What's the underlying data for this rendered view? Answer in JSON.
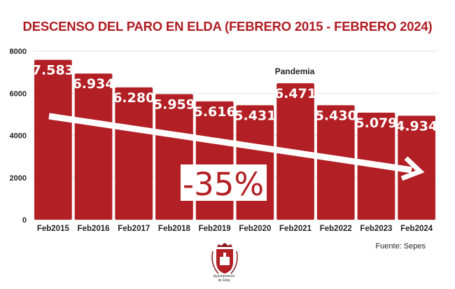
{
  "chart_data": {
    "type": "bar",
    "title": "DESCENSO DEL PARO EN ELDA (FEBRERO 2015 - FEBRERO 2024)",
    "categories": [
      "Feb2015",
      "Feb2016",
      "Feb2017",
      "Feb2018",
      "Feb2019",
      "Feb2020",
      "Feb2021",
      "Feb2022",
      "Feb2023",
      "Feb2024"
    ],
    "values": [
      7583,
      6934,
      6280,
      5959,
      5616,
      5431,
      6471,
      5430,
      5079,
      4934
    ],
    "data_labels": [
      "7.583",
      "6.934",
      "6.280",
      "5.959",
      "5.616",
      "5.431",
      "6.471",
      "5.430",
      "5.079",
      "4.934"
    ],
    "ylim": [
      0,
      8000
    ],
    "yticks": [
      "0",
      "2000",
      "4000",
      "6000",
      "8000"
    ],
    "grid": true,
    "annotations": {
      "pandemic": "Pandemia",
      "change": "-35%"
    },
    "colors": {
      "bar": "#b21f24",
      "title": "#b01c22"
    }
  },
  "source": "Fuente: Sepes",
  "logo_text": [
    "Ayuntamiento",
    "de Elda"
  ]
}
